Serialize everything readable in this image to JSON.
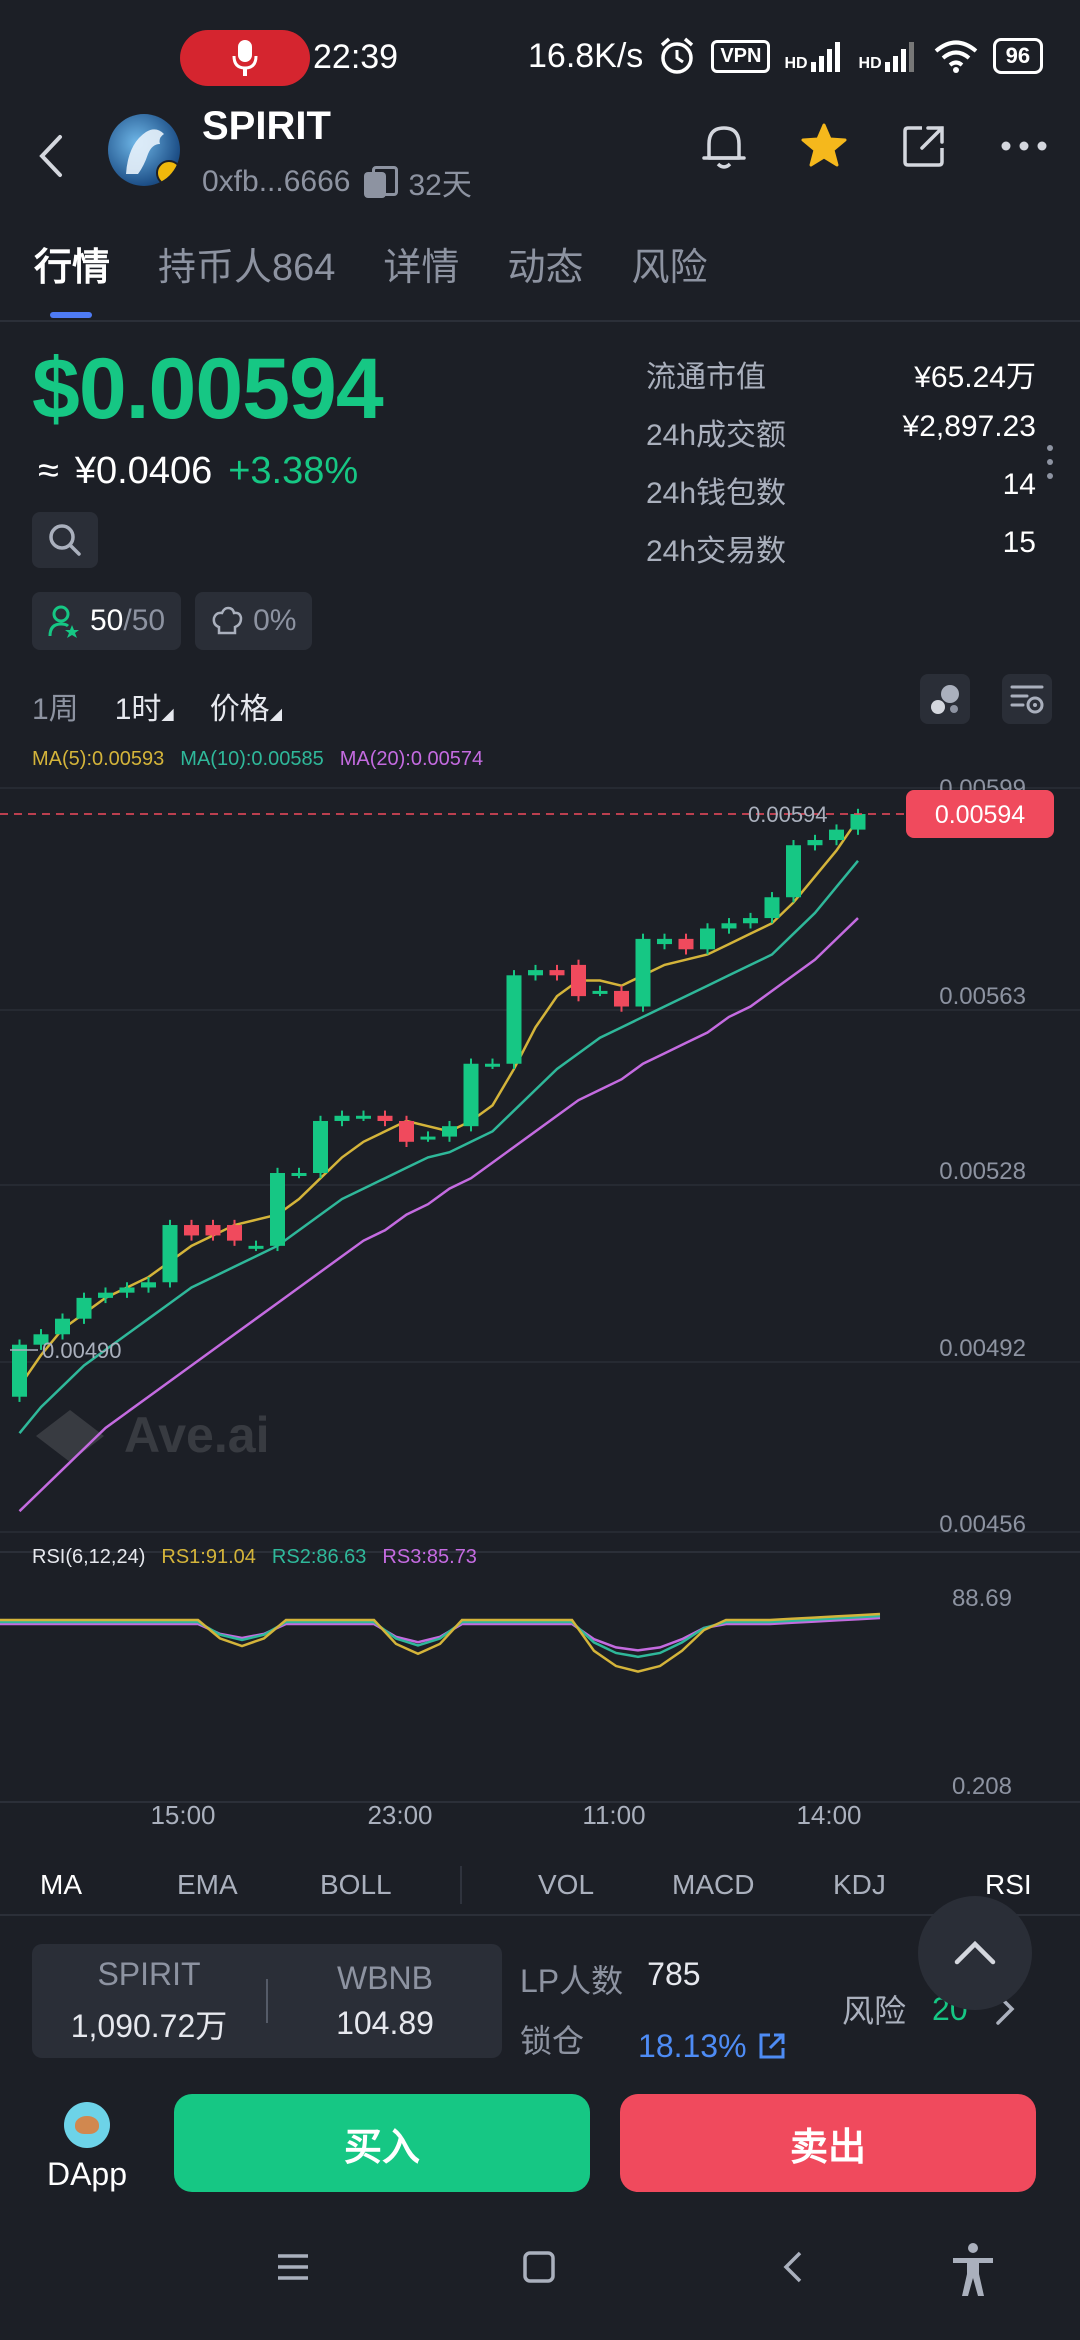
{
  "status_bar": {
    "time": "22:39",
    "speed": "16.8K/s",
    "vpn": "VPN",
    "signal_tag": "HD",
    "battery": "96"
  },
  "header": {
    "token_name": "SPIRIT",
    "address": "0xfb...6666",
    "age": "32天"
  },
  "tabs": [
    {
      "label": "行情",
      "active": true
    },
    {
      "label": "持币人864",
      "active": false
    },
    {
      "label": "详情",
      "active": false
    },
    {
      "label": "动态",
      "active": false
    },
    {
      "label": "风险",
      "active": false
    }
  ],
  "price": {
    "usd": "$0.00594",
    "approx_symbol": "≈",
    "cny": "¥0.0406",
    "change": "+3.38%"
  },
  "chips": {
    "holders": "50",
    "holders_total": "/50",
    "percent": "0%"
  },
  "stats": [
    {
      "label": "流通市值",
      "value": "¥65.24万"
    },
    {
      "label": "24h成交额",
      "value": "¥2,897.23"
    },
    {
      "label": "24h钱包数",
      "value": "14"
    },
    {
      "label": "24h交易数",
      "value": "15"
    }
  ],
  "toolbar": {
    "week": "1周",
    "hour": "1时",
    "price": "价格"
  },
  "ma_legend": {
    "ma5": "MA(5):0.00593",
    "ma10": "MA(10):0.00585",
    "ma20": "MA(20):0.00574"
  },
  "colors": {
    "up": "#16c784",
    "down": "#f04a5d",
    "ma5": "#d4b43a",
    "ma10": "#2fb89a",
    "ma20": "#c46be0",
    "accent": "#4e7bf5"
  },
  "chart_data": {
    "type": "candlestick",
    "y_ticks": [
      "0.00599",
      "0.00563",
      "0.00528",
      "0.00492",
      "0.00456"
    ],
    "y_range": [
      0.00456,
      0.00599
    ],
    "x_labels": [
      "15:00",
      "23:00",
      "11:00",
      "14:00"
    ],
    "current_price_label": "0.00594",
    "high_label": "0.00594",
    "low_label": "0.00490",
    "watermark": "Ave.ai",
    "candles": [
      [
        0.00482,
        0.00492,
        0.00481,
        0.00493
      ],
      [
        0.00492,
        0.00494,
        0.00491,
        0.00495
      ],
      [
        0.00494,
        0.00497,
        0.00493,
        0.00498
      ],
      [
        0.00497,
        0.00501,
        0.00496,
        0.00502
      ],
      [
        0.00501,
        0.00502,
        0.005,
        0.00503
      ],
      [
        0.00502,
        0.00503,
        0.00501,
        0.00504
      ],
      [
        0.00503,
        0.00504,
        0.00502,
        0.00505
      ],
      [
        0.00504,
        0.00515,
        0.00503,
        0.00516
      ],
      [
        0.00515,
        0.00513,
        0.00512,
        0.00516
      ],
      [
        0.00515,
        0.00513,
        0.00512,
        0.00516
      ],
      [
        0.00515,
        0.00512,
        0.00511,
        0.00516
      ],
      [
        0.00511,
        0.00511,
        0.0051,
        0.00512
      ],
      [
        0.00511,
        0.00525,
        0.0051,
        0.00526
      ],
      [
        0.00525,
        0.00525,
        0.00524,
        0.00526
      ],
      [
        0.00525,
        0.00535,
        0.00524,
        0.00536
      ],
      [
        0.00535,
        0.00536,
        0.00534,
        0.00537
      ],
      [
        0.00536,
        0.00536,
        0.00535,
        0.00537
      ],
      [
        0.00536,
        0.00535,
        0.00534,
        0.00537
      ],
      [
        0.00535,
        0.00531,
        0.0053,
        0.00536
      ],
      [
        0.00532,
        0.00532,
        0.00531,
        0.00533
      ],
      [
        0.00532,
        0.00534,
        0.00531,
        0.00535
      ],
      [
        0.00534,
        0.00546,
        0.00533,
        0.00547
      ],
      [
        0.00546,
        0.00546,
        0.00545,
        0.00547
      ],
      [
        0.00546,
        0.00563,
        0.00545,
        0.00564
      ],
      [
        0.00563,
        0.00564,
        0.00562,
        0.00565
      ],
      [
        0.00564,
        0.00563,
        0.00562,
        0.00565
      ],
      [
        0.00565,
        0.00559,
        0.00558,
        0.00566
      ],
      [
        0.0056,
        0.0056,
        0.00559,
        0.00561
      ],
      [
        0.0056,
        0.00557,
        0.00556,
        0.00561
      ],
      [
        0.00557,
        0.0057,
        0.00556,
        0.00571
      ],
      [
        0.00569,
        0.0057,
        0.00568,
        0.00571
      ],
      [
        0.0057,
        0.00568,
        0.00567,
        0.00571
      ],
      [
        0.00568,
        0.00572,
        0.00567,
        0.00573
      ],
      [
        0.00572,
        0.00573,
        0.00571,
        0.00574
      ],
      [
        0.00573,
        0.00574,
        0.00572,
        0.00575
      ],
      [
        0.00574,
        0.00578,
        0.00573,
        0.00579
      ],
      [
        0.00578,
        0.00588,
        0.00577,
        0.00589
      ],
      [
        0.00588,
        0.00589,
        0.00587,
        0.0059
      ],
      [
        0.00589,
        0.00591,
        0.00588,
        0.00592
      ],
      [
        0.00591,
        0.00594,
        0.0059,
        0.00595
      ]
    ],
    "ma5": [
      0.00484,
      0.0049,
      0.00495,
      0.00498,
      0.00501,
      0.00503,
      0.00505,
      0.00508,
      0.00511,
      0.00513,
      0.00515,
      0.00516,
      0.00517,
      0.0052,
      0.00524,
      0.00528,
      0.00531,
      0.00533,
      0.00535,
      0.00534,
      0.00533,
      0.00535,
      0.00538,
      0.00545,
      0.00553,
      0.00559,
      0.00562,
      0.00562,
      0.00561,
      0.00563,
      0.00565,
      0.00566,
      0.00567,
      0.00569,
      0.00571,
      0.00573,
      0.00577,
      0.00582,
      0.00587,
      0.00593
    ],
    "ma10": [
      0.00475,
      0.0048,
      0.00484,
      0.00488,
      0.00491,
      0.00494,
      0.00497,
      0.005,
      0.00503,
      0.00505,
      0.00507,
      0.00509,
      0.00511,
      0.00514,
      0.00517,
      0.0052,
      0.00522,
      0.00524,
      0.00526,
      0.00528,
      0.00529,
      0.00531,
      0.00533,
      0.00537,
      0.00541,
      0.00545,
      0.00548,
      0.00551,
      0.00553,
      0.00555,
      0.00557,
      0.00559,
      0.00561,
      0.00563,
      0.00565,
      0.00567,
      0.00571,
      0.00575,
      0.0058,
      0.00585
    ],
    "ma20": [
      0.0046,
      0.00464,
      0.00468,
      0.00472,
      0.00476,
      0.00479,
      0.00482,
      0.00485,
      0.00488,
      0.00491,
      0.00494,
      0.00497,
      0.005,
      0.00503,
      0.00506,
      0.00509,
      0.00512,
      0.00514,
      0.00517,
      0.00519,
      0.00522,
      0.00524,
      0.00527,
      0.0053,
      0.00533,
      0.00536,
      0.00539,
      0.00541,
      0.00543,
      0.00546,
      0.00548,
      0.0055,
      0.00552,
      0.00555,
      0.00557,
      0.0056,
      0.00563,
      0.00566,
      0.0057,
      0.00574
    ]
  },
  "rsi": {
    "title": "RSI(6,12,24)",
    "rs1": "RS1:91.04",
    "rs2": "RS2:86.63",
    "rs3": "RS3:85.73",
    "top_label": "88.69",
    "bottom_label": "0.208"
  },
  "indicators": [
    "MA",
    "EMA",
    "BOLL",
    "VOL",
    "MACD",
    "KDJ",
    "RSI"
  ],
  "pool": {
    "token_a": "SPIRIT",
    "amount_a": "1,090.72万",
    "token_b": "WBNB",
    "amount_b": "104.89",
    "lp_label": "LP人数",
    "lp_value": "785",
    "lock_label": "锁仓",
    "lock_value": "18.13%",
    "risk_label": "风险",
    "risk_value": "20"
  },
  "actions": {
    "dapp": "DApp",
    "buy": "买入",
    "sell": "卖出"
  }
}
